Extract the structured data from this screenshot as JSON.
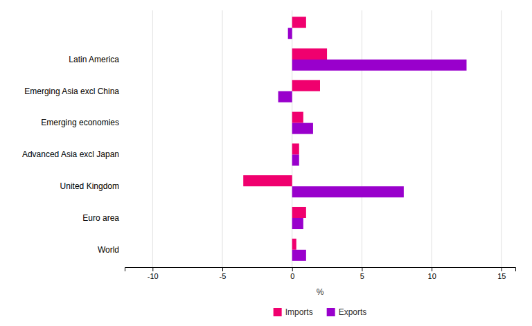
{
  "chart_data": {
    "type": "bar",
    "orientation": "horizontal",
    "categories": [
      "World",
      "Euro area",
      "United Kingdom",
      "Advanced Asia excl Japan",
      "Emerging economies",
      "Emerging Asia excl China",
      "Latin America",
      null
    ],
    "series": [
      {
        "name": "Imports",
        "color": "#F0006E",
        "values": [
          0.3,
          1.0,
          -3.5,
          0.5,
          0.8,
          2.0,
          2.5,
          1.0
        ]
      },
      {
        "name": "Exports",
        "color": "#9900CC",
        "values": [
          1.0,
          0.8,
          8.0,
          0.5,
          1.5,
          -1.0,
          12.5,
          -0.3
        ]
      }
    ],
    "xlabel": "%",
    "xlim": [
      -12,
      16
    ],
    "xticks": [
      -10,
      -5,
      0,
      5,
      10,
      15
    ],
    "grid": true,
    "legend": "bottom"
  }
}
